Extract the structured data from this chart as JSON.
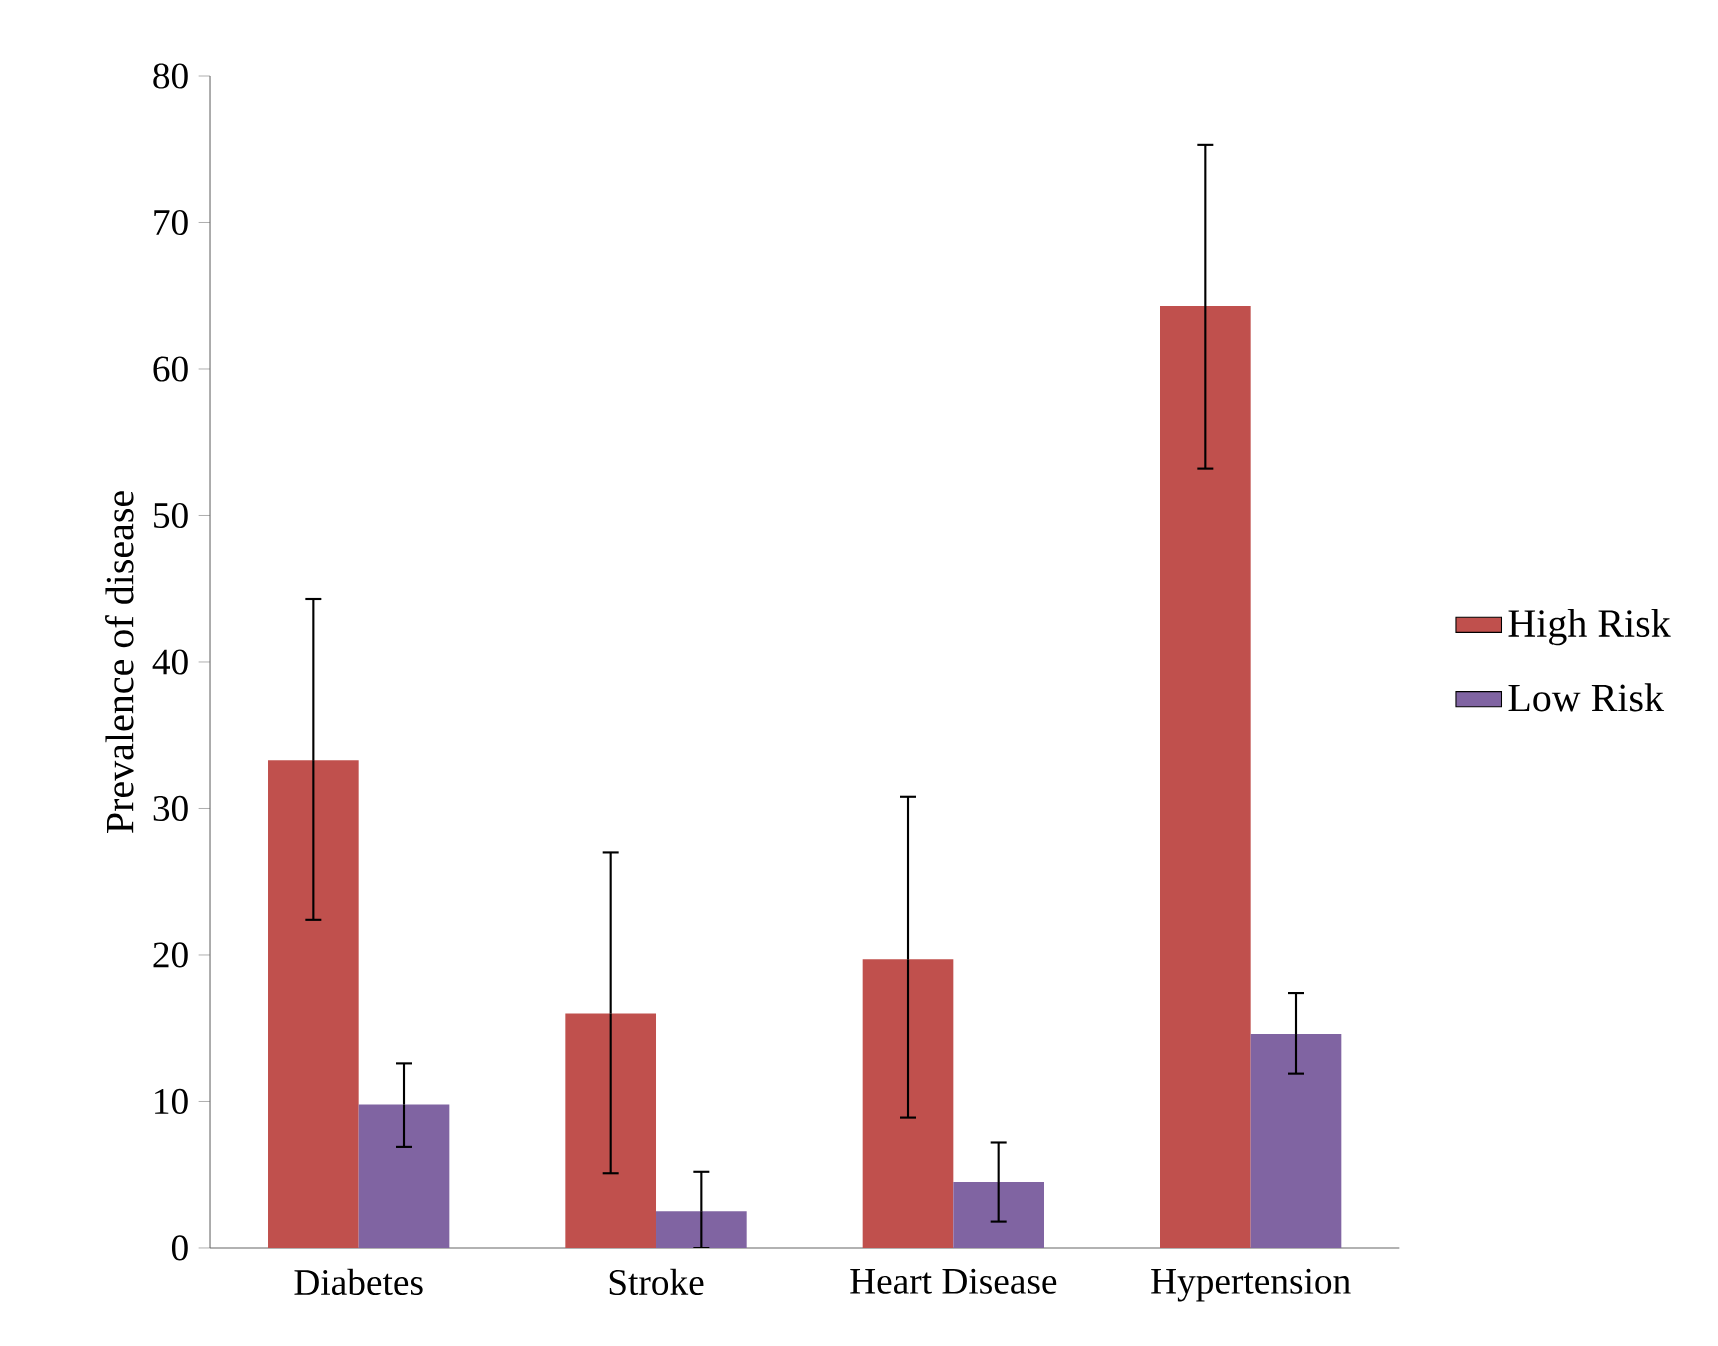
{
  "chart_data": {
    "type": "bar",
    "ylabel": "Prevalence of disease",
    "categories": [
      "Diabetes",
      "Stroke",
      "Heart Disease",
      "Hypertension"
    ],
    "series": [
      {
        "name": "High Risk",
        "color": "#c0504d",
        "values": [
          33.3,
          16.0,
          19.7,
          64.3
        ],
        "errors": [
          [
            22.4,
            44.3
          ],
          [
            5.1,
            27.0
          ],
          [
            8.9,
            30.8
          ],
          [
            53.2,
            75.3
          ]
        ]
      },
      {
        "name": "Low Risk",
        "color": "#8064a2",
        "values": [
          9.8,
          2.5,
          4.5,
          14.6
        ],
        "errors": [
          [
            6.9,
            12.6
          ],
          [
            0,
            5.2
          ],
          [
            1.8,
            7.2
          ],
          [
            11.9,
            17.4
          ]
        ]
      }
    ],
    "ylim": [
      0,
      80
    ],
    "yticks": [
      0,
      10,
      20,
      30,
      40,
      50,
      60,
      70,
      80
    ],
    "grid": false,
    "legend": "right"
  }
}
